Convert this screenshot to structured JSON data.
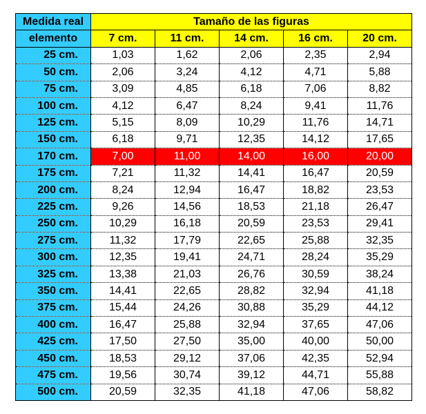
{
  "header": {
    "left_top": "Medida real",
    "left_bottom": "elemento",
    "title": "Tamaño de las figuras",
    "sizes": [
      "7 cm.",
      "11 cm.",
      "14 cm.",
      "16 cm.",
      "20 cm."
    ]
  },
  "highlight_color": "#ff0000",
  "label_bg_color": "#33ccff",
  "header_bg_color": "#ffff00",
  "highlighted_row": "170 cm.",
  "rows": [
    {
      "label": "25  cm.",
      "values": [
        "1,03",
        "1,62",
        "2,06",
        "2,35",
        "2,94"
      ]
    },
    {
      "label": "50  cm.",
      "values": [
        "2,06",
        "3,24",
        "4,12",
        "4,71",
        "5,88"
      ]
    },
    {
      "label": "75  cm.",
      "values": [
        "3,09",
        "4,85",
        "6,18",
        "7,06",
        "8,82"
      ]
    },
    {
      "label": "100  cm.",
      "values": [
        "4,12",
        "6,47",
        "8,24",
        "9,41",
        "11,76"
      ]
    },
    {
      "label": "125  cm.",
      "values": [
        "5,15",
        "8,09",
        "10,29",
        "11,76",
        "14,71"
      ]
    },
    {
      "label": "150  cm.",
      "values": [
        "6,18",
        "9,71",
        "12,35",
        "14,12",
        "17,65"
      ]
    },
    {
      "label": "170  cm.",
      "values": [
        "7,00",
        "11,00",
        "14,00",
        "16,00",
        "20,00"
      ],
      "highlight": true
    },
    {
      "label": "175  cm.",
      "values": [
        "7,21",
        "11,32",
        "14,41",
        "16,47",
        "20,59"
      ]
    },
    {
      "label": "200  cm.",
      "values": [
        "8,24",
        "12,94",
        "16,47",
        "18,82",
        "23,53"
      ]
    },
    {
      "label": "225  cm.",
      "values": [
        "9,26",
        "14,56",
        "18,53",
        "21,18",
        "26,47"
      ]
    },
    {
      "label": "250  cm.",
      "values": [
        "10,29",
        "16,18",
        "20,59",
        "23,53",
        "29,41"
      ]
    },
    {
      "label": "275  cm.",
      "values": [
        "11,32",
        "17,79",
        "22,65",
        "25,88",
        "32,35"
      ]
    },
    {
      "label": "300  cm.",
      "values": [
        "12,35",
        "19,41",
        "24,71",
        "28,24",
        "35,29"
      ]
    },
    {
      "label": "325  cm.",
      "values": [
        "13,38",
        "21,03",
        "26,76",
        "30,59",
        "38,24"
      ]
    },
    {
      "label": "350  cm.",
      "values": [
        "14,41",
        "22,65",
        "28,82",
        "32,94",
        "41,18"
      ]
    },
    {
      "label": "375  cm.",
      "values": [
        "15,44",
        "24,26",
        "30,88",
        "35,29",
        "44,12"
      ]
    },
    {
      "label": "400  cm.",
      "values": [
        "16,47",
        "25,88",
        "32,94",
        "37,65",
        "47,06"
      ]
    },
    {
      "label": "425  cm.",
      "values": [
        "17,50",
        "27,50",
        "35,00",
        "40,00",
        "50,00"
      ]
    },
    {
      "label": "450  cm.",
      "values": [
        "18,53",
        "29,12",
        "37,06",
        "42,35",
        "52,94"
      ]
    },
    {
      "label": "475  cm.",
      "values": [
        "19,56",
        "30,74",
        "39,12",
        "44,71",
        "55,88"
      ]
    },
    {
      "label": "500  cm.",
      "values": [
        "20,59",
        "32,35",
        "41,18",
        "47,06",
        "58,82"
      ]
    }
  ]
}
